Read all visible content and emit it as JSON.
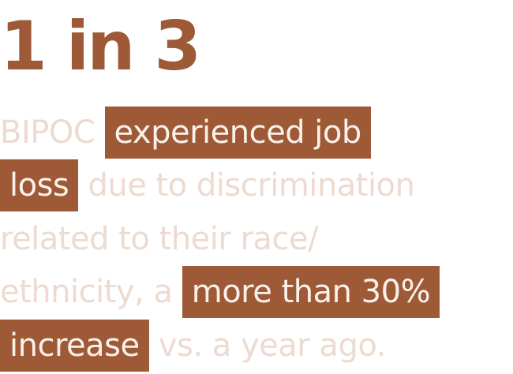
{
  "stat": "1 in 3",
  "lines": [
    {
      "pre": "BIPOC ",
      "highlight": "experienced job",
      "post": ""
    },
    {
      "pre": "",
      "highlight": "loss",
      "post": " due to discrimination"
    },
    {
      "pre": "related to their race/",
      "highlight": "",
      "post": ""
    },
    {
      "pre": "ethnicity, a ",
      "highlight": "more than 30%",
      "post": ""
    },
    {
      "pre": "",
      "highlight": "increase",
      "post": " vs. a year ago."
    }
  ],
  "colors": {
    "accent": "#9e5a37",
    "muted_text": "#eddad0",
    "highlight_text": "#faf1ea",
    "background": "#ffffff"
  }
}
